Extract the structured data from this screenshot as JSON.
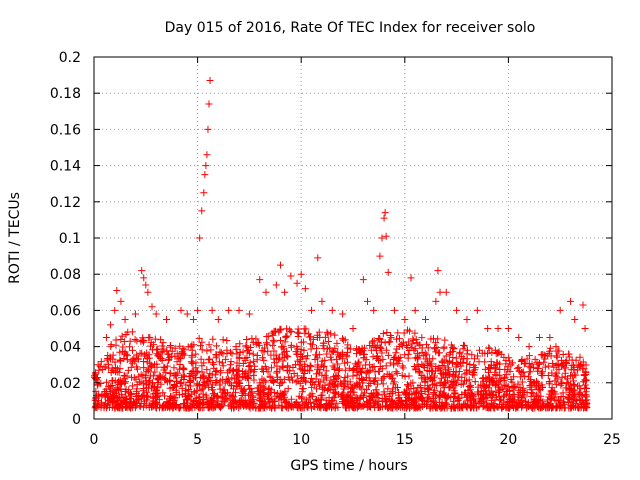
{
  "chart_data": {
    "type": "scatter",
    "title": "Day 015 of 2016, Rate Of TEC Index for receiver solo",
    "xlabel": "GPS time / hours",
    "ylabel": "ROTI / TECUs",
    "xlim": [
      0,
      25
    ],
    "ylim": [
      0,
      0.2
    ],
    "xticks": [
      0,
      5,
      10,
      15,
      20,
      25
    ],
    "xtick_labels": [
      "0",
      "5",
      "10",
      "15",
      "20",
      "25"
    ],
    "yticks": [
      0,
      0.02,
      0.04,
      0.06,
      0.08,
      0.1,
      0.12,
      0.14,
      0.16,
      0.18,
      0.2
    ],
    "ytick_labels": [
      "0",
      "0.02",
      "0.04",
      "0.06",
      "0.08",
      "0.1",
      "0.12",
      "0.14",
      "0.16",
      "0.18",
      "0.2"
    ],
    "grid": true,
    "marker": "+",
    "colors": {
      "points": "#ff0000",
      "grid": "#a0a0a0",
      "axes": "#000000"
    },
    "series": [
      {
        "name": "ROTI",
        "envelope": {
          "x": [
            0,
            1,
            2,
            3,
            4,
            5,
            6,
            7,
            8,
            9,
            10,
            11,
            12,
            13,
            14,
            15,
            16,
            17,
            18,
            19,
            20,
            21,
            22,
            23,
            23.8
          ],
          "y": [
            0.025,
            0.045,
            0.05,
            0.045,
            0.04,
            0.045,
            0.045,
            0.045,
            0.045,
            0.05,
            0.05,
            0.05,
            0.045,
            0.04,
            0.05,
            0.05,
            0.045,
            0.045,
            0.04,
            0.04,
            0.035,
            0.035,
            0.04,
            0.04,
            0.03
          ]
        },
        "floor": 0.006,
        "dense_count": 2600,
        "sparse": {
          "x": [
            0.2,
            0.6,
            0.8,
            1.0,
            1.1,
            1.3,
            1.5,
            2.0,
            2.3,
            2.4,
            2.5,
            2.6,
            2.8,
            3.0,
            3.5,
            4.2,
            4.5,
            4.8,
            5.0,
            5.1,
            5.2,
            5.3,
            5.35,
            5.4,
            5.45,
            5.5,
            5.55,
            5.6,
            5.7,
            6.0,
            6.5,
            7.0,
            7.5,
            8.0,
            8.3,
            8.8,
            9.0,
            9.2,
            9.5,
            9.8,
            10.0,
            10.2,
            10.5,
            10.8,
            11.0,
            11.5,
            12.0,
            12.5,
            13.0,
            13.2,
            13.5,
            13.8,
            13.9,
            14.0,
            14.05,
            14.1,
            14.2,
            14.5,
            15.0,
            15.3,
            15.5,
            16.0,
            16.5,
            16.6,
            16.7,
            17.0,
            17.5,
            18.0,
            18.5,
            19.0,
            19.5,
            20.0,
            20.5,
            21.0,
            21.5,
            22.0,
            22.5,
            23.0,
            23.2,
            23.6,
            23.7
          ],
          "y": [
            0.03,
            0.045,
            0.052,
            0.06,
            0.071,
            0.065,
            0.055,
            0.058,
            0.082,
            0.078,
            0.074,
            0.07,
            0.062,
            0.058,
            0.055,
            0.06,
            0.058,
            0.055,
            0.06,
            0.1,
            0.115,
            0.125,
            0.135,
            0.14,
            0.146,
            0.16,
            0.174,
            0.187,
            0.06,
            0.055,
            0.06,
            0.06,
            0.058,
            0.077,
            0.07,
            0.074,
            0.085,
            0.07,
            0.079,
            0.075,
            0.08,
            0.072,
            0.06,
            0.089,
            0.065,
            0.06,
            0.058,
            0.05,
            0.077,
            0.065,
            0.06,
            0.09,
            0.1,
            0.111,
            0.114,
            0.101,
            0.081,
            0.06,
            0.055,
            0.078,
            0.06,
            0.055,
            0.065,
            0.082,
            0.07,
            0.07,
            0.06,
            0.055,
            0.06,
            0.05,
            0.05,
            0.05,
            0.045,
            0.04,
            0.045,
            0.045,
            0.06,
            0.065,
            0.055,
            0.063,
            0.05
          ]
        }
      }
    ]
  }
}
